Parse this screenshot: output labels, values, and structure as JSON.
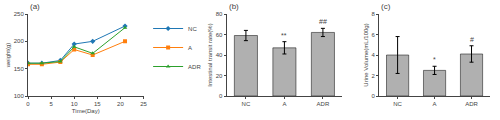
{
  "chart_data": [
    {
      "type": "line",
      "title": "(a)",
      "xlabel": "Time(Day)",
      "ylabel": "weight(g)",
      "x": [
        0,
        3,
        7,
        10,
        14,
        21
      ],
      "series": [
        {
          "name": "NC",
          "values": [
            160,
            160,
            165,
            195,
            200,
            228
          ],
          "marker": "diamond"
        },
        {
          "name": "A",
          "values": [
            158,
            158,
            162,
            185,
            175,
            200
          ],
          "marker": "square"
        },
        {
          "name": "ADR",
          "values": [
            160,
            160,
            163,
            190,
            178,
            225
          ],
          "marker": "triangle"
        }
      ],
      "xlim": [
        0,
        25
      ],
      "xticks": [
        0,
        5,
        10,
        15,
        20,
        25
      ],
      "ylim": [
        100,
        250
      ],
      "yticks": [
        100,
        150,
        200,
        250
      ],
      "legend": "right",
      "grid": false
    },
    {
      "type": "bar",
      "title": "(b)",
      "ylabel": "Intestinal transit rate(%)",
      "categories": [
        "NC",
        "A",
        "ADR"
      ],
      "values": [
        59,
        47,
        62
      ],
      "errors": [
        5,
        6,
        4
      ],
      "color": "#b0b0b0",
      "ylim": [
        0,
        80
      ],
      "yticks": [
        0,
        20,
        40,
        60,
        80
      ],
      "grid": false,
      "annotations": [
        {
          "category": "A",
          "text": "**"
        },
        {
          "category": "ADR",
          "text": "##"
        }
      ]
    },
    {
      "type": "bar",
      "title": "(c)",
      "ylabel": "Urine Volume(mL/100g)",
      "categories": [
        "NC",
        "A",
        "ADR"
      ],
      "values": [
        4.0,
        2.5,
        4.1
      ],
      "errors": [
        1.8,
        0.4,
        0.8
      ],
      "color": "#b0b0b0",
      "ylim": [
        0,
        8
      ],
      "yticks": [
        0,
        2,
        4,
        6,
        8
      ],
      "grid": false,
      "annotations": [
        {
          "category": "A",
          "text": "*"
        },
        {
          "category": "ADR",
          "text": "#"
        }
      ]
    }
  ]
}
